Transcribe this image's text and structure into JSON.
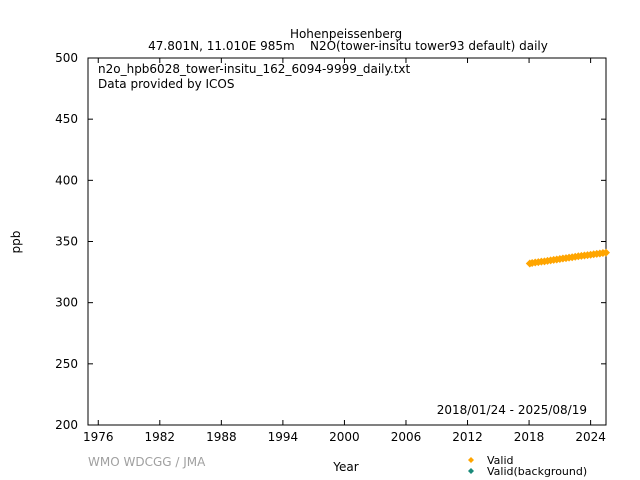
{
  "header": {
    "station": "Hohenpeissenberg",
    "subtitle": "47.801N, 11.010E 985m    N2O(tower-insitu tower93 default) daily"
  },
  "annotations": {
    "filename": "n2o_hpb6028_tower-insitu_162_6094-9999_daily.txt",
    "provider": "Data provided by ICOS",
    "period": "2018/01/24 - 2025/08/19",
    "credit": "WMO WDCGG / JMA"
  },
  "colors": {
    "valid": "#FFA500",
    "background": "#1a8a7a",
    "axis": "#000000",
    "credit": "#a0a0a0"
  },
  "chart_data": {
    "type": "scatter",
    "title": "Hohenpeissenberg",
    "xlabel": "Year",
    "ylabel": "ppb",
    "xlim": [
      1975.0,
      2025.5
    ],
    "ylim": [
      200,
      500
    ],
    "xticks": [
      1976,
      1982,
      1988,
      1994,
      2000,
      2006,
      2012,
      2018,
      2024
    ],
    "yticks": [
      200,
      250,
      300,
      350,
      400,
      450,
      500
    ],
    "grid": false,
    "legend_position": "bottom-right, below plot",
    "series": [
      {
        "name": "Valid",
        "marker": "diamond",
        "color": "#FFA500",
        "x": [
          2018.07,
          2018.3,
          2018.6,
          2018.9,
          2019.2,
          2019.5,
          2019.8,
          2020.1,
          2020.4,
          2020.7,
          2021.0,
          2021.3,
          2021.6,
          2021.9,
          2022.2,
          2022.5,
          2022.8,
          2023.1,
          2023.4,
          2023.7,
          2024.0,
          2024.3,
          2024.6,
          2024.9,
          2025.2,
          2025.5
        ],
        "y": [
          332.0,
          332.4,
          332.8,
          333.1,
          333.5,
          333.8,
          334.2,
          334.6,
          335.0,
          335.3,
          335.7,
          336.1,
          336.4,
          336.8,
          337.1,
          337.5,
          337.9,
          338.2,
          338.6,
          338.9,
          339.2,
          339.6,
          339.9,
          340.2,
          340.6,
          340.9
        ]
      },
      {
        "name": "Valid(background)",
        "marker": "diamond",
        "color": "#1a8a7a",
        "x": [],
        "y": []
      }
    ]
  }
}
